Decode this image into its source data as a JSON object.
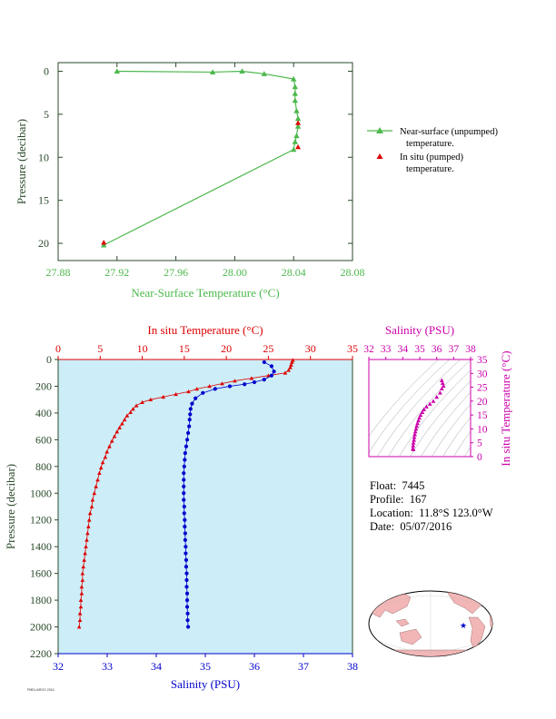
{
  "float_info": {
    "float_label": "Float:",
    "float_value": "7445",
    "profile_label": "Profile:",
    "profile_value": "167",
    "location_label": "Location:",
    "location_value": "11.8°S  123.0°W",
    "date_label": "Date:",
    "date_value": "05/07/2016"
  },
  "colors": {
    "near_surface": "#4CB84C",
    "in_situ_temp": "#DD0000",
    "salinity": "#0000CC",
    "ts_plot": "#CC00AA",
    "plot_bg": "#CDEEF8",
    "axis_dark": "#2A4A2A"
  },
  "chart_data": [
    {
      "type": "line",
      "id": "near-surface",
      "title": "",
      "xlabel": "Near-Surface Temperature (°C)",
      "ylabel": "Pressure (decibar)",
      "xlim": [
        27.88,
        28.08
      ],
      "ylim": [
        22,
        -1
      ],
      "x_ticks": [
        "27.88",
        "27.92",
        "27.96",
        "28.00",
        "28.04",
        "28.08"
      ],
      "y_ticks": [
        "0",
        "5",
        "10",
        "15",
        "20"
      ],
      "legend": {
        "placement": "right",
        "items": [
          {
            "label_line1": "Near-surface (unpumped)",
            "label_line2": "temperature."
          },
          {
            "label_line1": "In situ (pumped)",
            "label_line2": "temperature."
          }
        ]
      },
      "series": [
        {
          "name": "Near-surface (unpumped) temperature.",
          "marker": "triangle",
          "points": [
            [
              27.92,
              0.0
            ],
            [
              27.985,
              0.1
            ],
            [
              28.005,
              0.0
            ],
            [
              28.02,
              0.3
            ],
            [
              28.04,
              0.9
            ],
            [
              28.041,
              1.8
            ],
            [
              28.041,
              2.6
            ],
            [
              28.041,
              3.4
            ],
            [
              28.042,
              4.6
            ],
            [
              28.043,
              5.5
            ],
            [
              28.043,
              6.4
            ],
            [
              28.042,
              7.5
            ],
            [
              28.041,
              8.2
            ],
            [
              28.04,
              9.1
            ],
            [
              27.911,
              20.2
            ]
          ]
        },
        {
          "name": "In situ (pumped) temperature.",
          "marker": "triangle",
          "points": [
            [
              28.043,
              6.0
            ],
            [
              28.043,
              8.8
            ],
            [
              27.911,
              19.9
            ]
          ]
        }
      ]
    },
    {
      "type": "line",
      "id": "profile",
      "title": "",
      "xlabel_top": "In situ Temperature (°C)",
      "xlabel_bottom": "Salinity (PSU)",
      "ylabel": "Pressure (decibar)",
      "temp_lim": [
        0,
        35
      ],
      "sal_lim": [
        32,
        38
      ],
      "ylim": [
        2200,
        0
      ],
      "temp_ticks": [
        "0",
        "5",
        "10",
        "15",
        "20",
        "25",
        "30",
        "35"
      ],
      "sal_ticks": [
        "32",
        "33",
        "34",
        "35",
        "36",
        "37",
        "38"
      ],
      "y_ticks": [
        "0",
        "200",
        "400",
        "600",
        "800",
        "1000",
        "1200",
        "1400",
        "1600",
        "1800",
        "2000",
        "2200"
      ],
      "temperature": {
        "name": "In situ Temperature",
        "points": [
          [
            27.9,
            5
          ],
          [
            27.8,
            20
          ],
          [
            27.7,
            40
          ],
          [
            27.6,
            60
          ],
          [
            27.4,
            80
          ],
          [
            27.0,
            100
          ],
          [
            25.0,
            120
          ],
          [
            23.0,
            140
          ],
          [
            21.0,
            160
          ],
          [
            19.5,
            180
          ],
          [
            18.0,
            200
          ],
          [
            16.5,
            220
          ],
          [
            15.5,
            240
          ],
          [
            14.0,
            260
          ],
          [
            12.5,
            280
          ],
          [
            11.0,
            300
          ],
          [
            10.0,
            320
          ],
          [
            9.3,
            345
          ],
          [
            8.9,
            370
          ],
          [
            8.6,
            395
          ],
          [
            8.2,
            420
          ],
          [
            7.9,
            450
          ],
          [
            7.6,
            480
          ],
          [
            7.3,
            510
          ],
          [
            7.0,
            540
          ],
          [
            6.7,
            575
          ],
          [
            6.4,
            610
          ],
          [
            6.1,
            650
          ],
          [
            5.8,
            690
          ],
          [
            5.6,
            730
          ],
          [
            5.3,
            770
          ],
          [
            5.1,
            810
          ],
          [
            4.9,
            850
          ],
          [
            4.7,
            900
          ],
          [
            4.5,
            950
          ],
          [
            4.3,
            1000
          ],
          [
            4.1,
            1050
          ],
          [
            4.0,
            1100
          ],
          [
            3.8,
            1150
          ],
          [
            3.7,
            1200
          ],
          [
            3.6,
            1250
          ],
          [
            3.5,
            1300
          ],
          [
            3.4,
            1350
          ],
          [
            3.3,
            1400
          ],
          [
            3.2,
            1450
          ],
          [
            3.1,
            1500
          ],
          [
            3.0,
            1550
          ],
          [
            2.9,
            1600
          ],
          [
            2.9,
            1650
          ],
          [
            2.8,
            1700
          ],
          [
            2.8,
            1750
          ],
          [
            2.7,
            1800
          ],
          [
            2.7,
            1850
          ],
          [
            2.6,
            1900
          ],
          [
            2.6,
            1950
          ],
          [
            2.5,
            2000
          ]
        ]
      },
      "salinity": {
        "name": "Salinity",
        "points": [
          [
            36.2,
            20
          ],
          [
            36.35,
            50
          ],
          [
            36.4,
            90
          ],
          [
            36.35,
            120
          ],
          [
            36.2,
            150
          ],
          [
            36.0,
            170
          ],
          [
            35.8,
            185
          ],
          [
            35.5,
            200
          ],
          [
            35.2,
            220
          ],
          [
            34.95,
            250
          ],
          [
            34.8,
            290
          ],
          [
            34.73,
            330
          ],
          [
            34.7,
            370
          ],
          [
            34.69,
            410
          ],
          [
            34.68,
            450
          ],
          [
            34.67,
            500
          ],
          [
            34.65,
            550
          ],
          [
            34.63,
            600
          ],
          [
            34.61,
            650
          ],
          [
            34.59,
            700
          ],
          [
            34.58,
            750
          ],
          [
            34.57,
            800
          ],
          [
            34.56,
            850
          ],
          [
            34.56,
            900
          ],
          [
            34.56,
            950
          ],
          [
            34.56,
            1000
          ],
          [
            34.56,
            1050
          ],
          [
            34.57,
            1100
          ],
          [
            34.57,
            1150
          ],
          [
            34.58,
            1200
          ],
          [
            34.58,
            1250
          ],
          [
            34.59,
            1300
          ],
          [
            34.59,
            1350
          ],
          [
            34.6,
            1400
          ],
          [
            34.6,
            1450
          ],
          [
            34.61,
            1500
          ],
          [
            34.61,
            1550
          ],
          [
            34.62,
            1600
          ],
          [
            34.62,
            1650
          ],
          [
            34.62,
            1700
          ],
          [
            34.63,
            1750
          ],
          [
            34.63,
            1800
          ],
          [
            34.63,
            1850
          ],
          [
            34.64,
            1900
          ],
          [
            34.64,
            1950
          ],
          [
            34.65,
            2000
          ]
        ]
      }
    },
    {
      "type": "scatter",
      "id": "ts-diagram",
      "title": "",
      "xlabel": "Salinity (PSU)",
      "ylabel": "In situ Temperature (°C)",
      "xlim": [
        32,
        38
      ],
      "ylim": [
        0,
        35
      ],
      "x_ticks": [
        "32",
        "33",
        "34",
        "35",
        "36",
        "37",
        "38"
      ],
      "y_ticks": [
        "0",
        "5",
        "10",
        "15",
        "20",
        "25",
        "30",
        "35"
      ],
      "points": [
        [
          36.3,
          27.5
        ],
        [
          36.35,
          26.5
        ],
        [
          36.4,
          25.5
        ],
        [
          36.3,
          24.5
        ],
        [
          36.2,
          23.0
        ],
        [
          36.0,
          21.5
        ],
        [
          35.8,
          20.0
        ],
        [
          35.6,
          19.0
        ],
        [
          35.4,
          18.0
        ],
        [
          35.25,
          17.0
        ],
        [
          35.15,
          16.0
        ],
        [
          35.05,
          15.0
        ],
        [
          34.98,
          14.0
        ],
        [
          34.92,
          13.0
        ],
        [
          34.87,
          12.0
        ],
        [
          34.82,
          11.0
        ],
        [
          34.78,
          10.0
        ],
        [
          34.74,
          9.0
        ],
        [
          34.71,
          8.0
        ],
        [
          34.68,
          7.0
        ],
        [
          34.66,
          6.0
        ],
        [
          34.63,
          5.0
        ],
        [
          34.61,
          4.0
        ],
        [
          34.6,
          3.0
        ],
        [
          34.62,
          2.6
        ]
      ]
    }
  ],
  "map": {
    "marker_icon": "star",
    "marker_color": "#0000CC"
  },
  "credit": "PMEL/ARGO 2016"
}
